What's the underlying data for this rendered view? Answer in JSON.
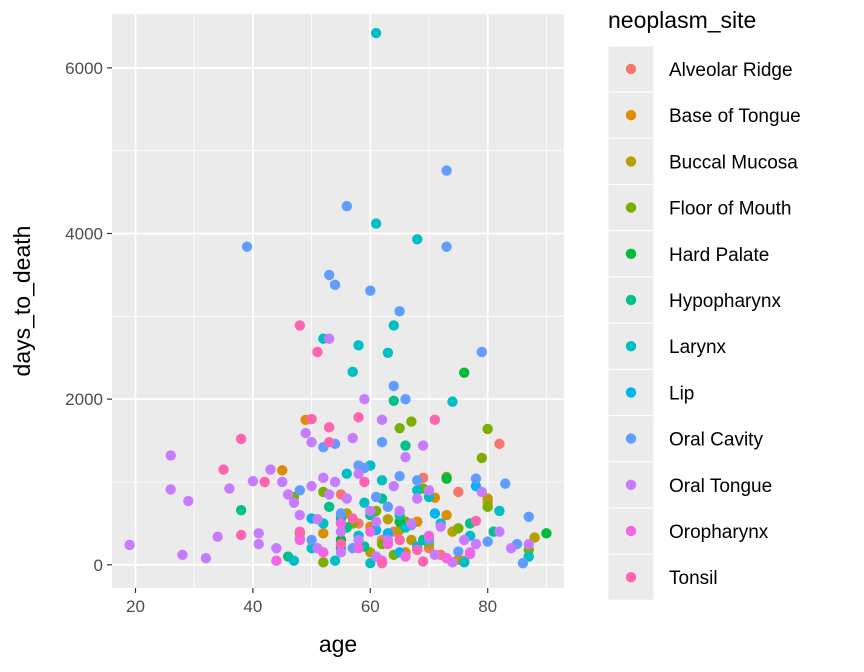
{
  "chart_data": {
    "type": "scatter",
    "xlabel": "age",
    "ylabel": "days_to_death",
    "xlim": [
      16,
      93
    ],
    "ylim": [
      -280,
      6650
    ],
    "xticks": [
      20,
      40,
      60,
      80
    ],
    "yticks": [
      0,
      2000,
      4000,
      6000
    ],
    "grid": true,
    "legend_title": "neoplasm_site",
    "legend_position": "right",
    "series": [
      {
        "name": "Alveolar Ridge",
        "color": "#F8766D",
        "points": [
          [
            55,
            850
          ],
          [
            69,
            1050
          ],
          [
            75,
            880
          ],
          [
            80,
            760
          ],
          [
            82,
            1460
          ],
          [
            64,
            400
          ],
          [
            70,
            200
          ],
          [
            62,
            300
          ],
          [
            72,
            120
          ],
          [
            58,
            500
          ],
          [
            76,
            50
          ]
        ]
      },
      {
        "name": "Base of Tongue",
        "color": "#DE8C00",
        "points": [
          [
            49,
            1750
          ],
          [
            45,
            1140
          ],
          [
            71,
            810
          ],
          [
            73,
            600
          ],
          [
            60,
            460
          ],
          [
            63,
            280
          ],
          [
            66,
            150
          ],
          [
            52,
            380
          ],
          [
            75,
            60
          ],
          [
            68,
            520
          ]
        ]
      },
      {
        "name": "Buccal Mucosa",
        "color": "#B79F00",
        "points": [
          [
            63,
            550
          ],
          [
            67,
            300
          ],
          [
            88,
            330
          ],
          [
            80,
            800
          ],
          [
            74,
            400
          ],
          [
            60,
            150
          ],
          [
            65,
            420
          ],
          [
            70,
            250
          ],
          [
            56,
            620
          ]
        ]
      },
      {
        "name": "Floor of Mouth",
        "color": "#7CAE00",
        "points": [
          [
            65,
            1650
          ],
          [
            67,
            1730
          ],
          [
            80,
            1640
          ],
          [
            79,
            1290
          ],
          [
            80,
            700
          ],
          [
            47,
            820
          ],
          [
            52,
            880
          ],
          [
            69,
            920
          ],
          [
            61,
            650
          ],
          [
            73,
            1060
          ],
          [
            57,
            500
          ],
          [
            66,
            520
          ],
          [
            64,
            120
          ],
          [
            52,
            30
          ],
          [
            48,
            380
          ],
          [
            62,
            250
          ],
          [
            75,
            440
          ],
          [
            87,
            180
          ]
        ]
      },
      {
        "name": "Hard Palate",
        "color": "#00BA38",
        "points": [
          [
            76,
            2320
          ],
          [
            73,
            1040
          ],
          [
            90,
            380
          ],
          [
            65,
            520
          ],
          [
            55,
            300
          ]
        ]
      },
      {
        "name": "Hypopharynx",
        "color": "#00C08B",
        "points": [
          [
            38,
            660
          ],
          [
            53,
            700
          ],
          [
            55,
            560
          ],
          [
            60,
            600
          ],
          [
            64,
            1980
          ],
          [
            66,
            1440
          ],
          [
            77,
            500
          ],
          [
            81,
            400
          ],
          [
            46,
            100
          ],
          [
            56,
            450
          ],
          [
            69,
            300
          ],
          [
            62,
            800
          ],
          [
            59,
            220
          ]
        ]
      },
      {
        "name": "Larynx",
        "color": "#00BFC4",
        "points": [
          [
            61,
            6420
          ],
          [
            61,
            4120
          ],
          [
            68,
            3930
          ],
          [
            52,
            2730
          ],
          [
            58,
            2650
          ],
          [
            64,
            2890
          ],
          [
            63,
            2560
          ],
          [
            57,
            2330
          ],
          [
            60,
            1200
          ],
          [
            74,
            1970
          ],
          [
            47,
            50
          ],
          [
            50,
            200
          ],
          [
            58,
            350
          ],
          [
            65,
            600
          ],
          [
            68,
            900
          ],
          [
            72,
            500
          ],
          [
            77,
            350
          ],
          [
            82,
            650
          ],
          [
            87,
            100
          ],
          [
            60,
            20
          ],
          [
            56,
            1100
          ],
          [
            52,
            500
          ],
          [
            70,
            820
          ],
          [
            76,
            30
          ],
          [
            62,
            1020
          ],
          [
            66,
            450
          ],
          [
            54,
            50
          ],
          [
            59,
            750
          ]
        ]
      },
      {
        "name": "Lip",
        "color": "#00B4F0",
        "points": [
          [
            65,
            150
          ],
          [
            71,
            620
          ],
          [
            61,
            420
          ],
          [
            68,
            220
          ],
          [
            55,
            200
          ],
          [
            78,
            950
          ],
          [
            50,
            560
          ],
          [
            63,
            380
          ]
        ]
      },
      {
        "name": "Oral Cavity",
        "color": "#619CFF",
        "points": [
          [
            73,
            4760
          ],
          [
            56,
            4330
          ],
          [
            39,
            3840
          ],
          [
            73,
            3840
          ],
          [
            53,
            3500
          ],
          [
            54,
            3380
          ],
          [
            60,
            3310
          ],
          [
            65,
            3060
          ],
          [
            79,
            2570
          ],
          [
            64,
            2160
          ],
          [
            66,
            2000
          ],
          [
            58,
            1200
          ],
          [
            54,
            1460
          ],
          [
            59,
            1170
          ],
          [
            62,
            1480
          ],
          [
            65,
            1070
          ],
          [
            68,
            1020
          ],
          [
            78,
            1040
          ],
          [
            83,
            980
          ],
          [
            87,
            580
          ],
          [
            85,
            250
          ],
          [
            80,
            280
          ],
          [
            86,
            20
          ],
          [
            48,
            900
          ],
          [
            55,
            620
          ],
          [
            61,
            820
          ],
          [
            70,
            300
          ],
          [
            57,
            200
          ],
          [
            52,
            1420
          ],
          [
            75,
            160
          ],
          [
            63,
            700
          ],
          [
            50,
            300
          ],
          [
            67,
            480
          ]
        ]
      },
      {
        "name": "Oral Tongue",
        "color": "#C77CFF",
        "points": [
          [
            19,
            240
          ],
          [
            26,
            1320
          ],
          [
            26,
            910
          ],
          [
            28,
            120
          ],
          [
            29,
            770
          ],
          [
            32,
            80
          ],
          [
            34,
            340
          ],
          [
            36,
            920
          ],
          [
            40,
            1010
          ],
          [
            41,
            380
          ],
          [
            41,
            250
          ],
          [
            43,
            1150
          ],
          [
            44,
            200
          ],
          [
            45,
            1000
          ],
          [
            46,
            850
          ],
          [
            47,
            750
          ],
          [
            48,
            320
          ],
          [
            49,
            1590
          ],
          [
            50,
            1480
          ],
          [
            50,
            950
          ],
          [
            51,
            550
          ],
          [
            51,
            200
          ],
          [
            52,
            1050
          ],
          [
            53,
            2730
          ],
          [
            54,
            1000
          ],
          [
            55,
            400
          ],
          [
            56,
            800
          ],
          [
            57,
            1530
          ],
          [
            58,
            1100
          ],
          [
            59,
            2000
          ],
          [
            60,
            650
          ],
          [
            61,
            520
          ],
          [
            62,
            1750
          ],
          [
            63,
            300
          ],
          [
            64,
            950
          ],
          [
            65,
            650
          ],
          [
            66,
            1300
          ],
          [
            67,
            500
          ],
          [
            68,
            800
          ],
          [
            69,
            1440
          ],
          [
            70,
            900
          ],
          [
            71,
            120
          ],
          [
            72,
            460
          ],
          [
            74,
            30
          ],
          [
            76,
            300
          ],
          [
            77,
            130
          ],
          [
            78,
            250
          ],
          [
            79,
            880
          ],
          [
            82,
            400
          ],
          [
            84,
            200
          ],
          [
            87,
            250
          ],
          [
            55,
            150
          ],
          [
            48,
            600
          ],
          [
            53,
            850
          ],
          [
            61,
            100
          ],
          [
            58,
            300
          ]
        ]
      },
      {
        "name": "Oropharynx",
        "color": "#F564E3",
        "points": [
          [
            48,
            300
          ],
          [
            52,
            150
          ],
          [
            60,
            400
          ],
          [
            63,
            250
          ],
          [
            66,
            100
          ],
          [
            70,
            350
          ],
          [
            55,
            500
          ],
          [
            58,
            200
          ],
          [
            73,
            80
          ],
          [
            77,
            150
          ],
          [
            44,
            50
          ],
          [
            62,
            50
          ]
        ]
      },
      {
        "name": "Tonsil",
        "color": "#FF64B0",
        "points": [
          [
            48,
            2890
          ],
          [
            51,
            2570
          ],
          [
            50,
            1760
          ],
          [
            53,
            1660
          ],
          [
            53,
            1480
          ],
          [
            38,
            1520
          ],
          [
            35,
            1150
          ],
          [
            42,
            1000
          ],
          [
            58,
            1780
          ],
          [
            71,
            1750
          ],
          [
            38,
            360
          ],
          [
            48,
            400
          ],
          [
            55,
            250
          ],
          [
            62,
            20
          ],
          [
            69,
            40
          ],
          [
            78,
            530
          ],
          [
            65,
            300
          ],
          [
            59,
            1000
          ],
          [
            68,
            180
          ],
          [
            57,
            560
          ]
        ]
      }
    ]
  }
}
